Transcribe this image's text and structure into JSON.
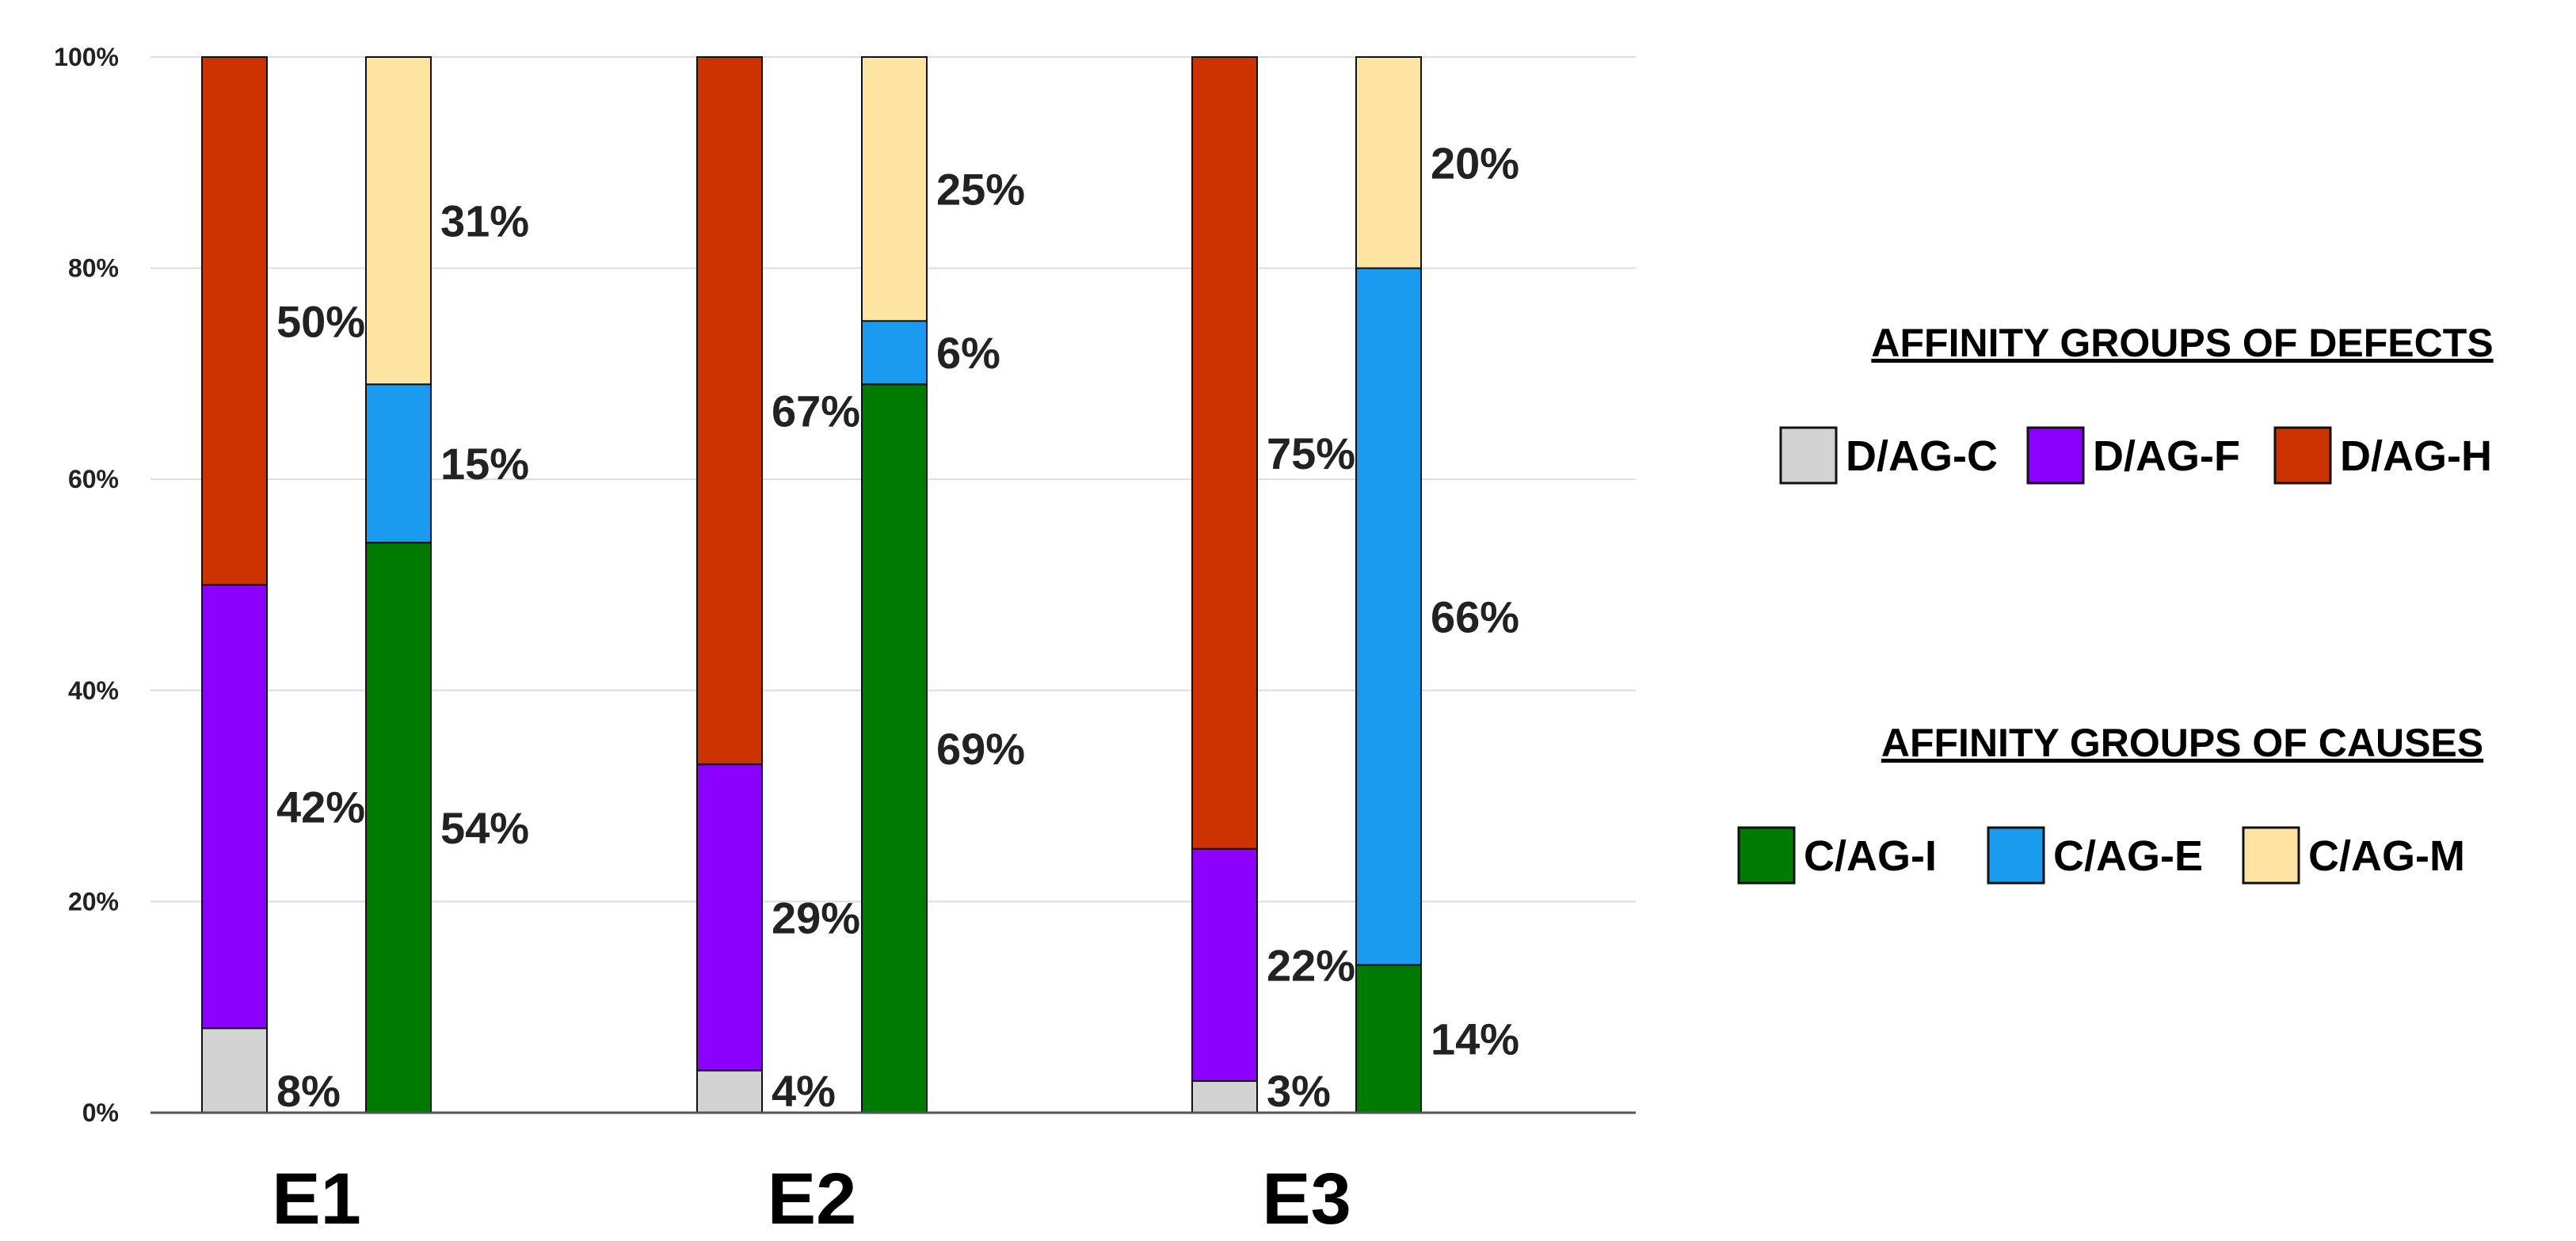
{
  "chart_data": {
    "type": "bar",
    "stacked": true,
    "categories": [
      "E1",
      "E2",
      "E3"
    ],
    "y_ticks": [
      "0%",
      "20%",
      "40%",
      "60%",
      "80%",
      "100%"
    ],
    "ylim": [
      0,
      100
    ],
    "groups": [
      {
        "name": "AFFINITY GROUPS OF DEFECTS",
        "series": [
          {
            "name": "D/AG-C",
            "color": "#d3d3d3",
            "values": [
              8,
              4,
              3
            ],
            "labels": [
              "8%",
              "4%",
              "3%"
            ]
          },
          {
            "name": "D/AG-F",
            "color": "#8b00ff",
            "values": [
              42,
              29,
              22
            ],
            "labels": [
              "42%",
              "29%",
              "22%"
            ]
          },
          {
            "name": "D/AG-H",
            "color": "#cc3300",
            "values": [
              50,
              67,
              75
            ],
            "labels": [
              "50%",
              "67%",
              "75%"
            ]
          }
        ]
      },
      {
        "name": "AFFINITY GROUPS OF CAUSES",
        "series": [
          {
            "name": "C/AG-I",
            "color": "#007a00",
            "values": [
              54,
              69,
              14
            ],
            "labels": [
              "54%",
              "69%",
              "14%"
            ]
          },
          {
            "name": "C/AG-E",
            "color": "#1a9bf0",
            "values": [
              15,
              6,
              66
            ],
            "labels": [
              "15%",
              "6%",
              "66%"
            ]
          },
          {
            "name": "C/AG-M",
            "color": "#fde4a0",
            "values": [
              31,
              25,
              20
            ],
            "labels": [
              "31%",
              "25%",
              "20%"
            ]
          }
        ]
      }
    ],
    "legend": {
      "position": "right",
      "titles": [
        "AFFINITY GROUPS OF DEFECTS",
        "AFFINITY GROUPS OF CAUSES"
      ]
    },
    "grid": true
  }
}
